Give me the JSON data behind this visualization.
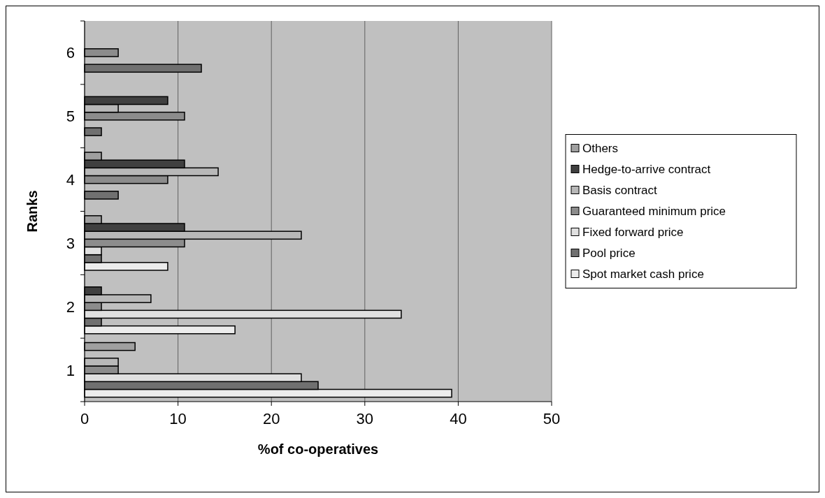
{
  "chart_data": {
    "type": "bar",
    "orientation": "horizontal",
    "xlabel": "%of co-operatives",
    "ylabel": "Ranks",
    "categories": [
      "6",
      "5",
      "4",
      "3",
      "2",
      "1"
    ],
    "series": [
      {
        "name": "Spot market cash price",
        "color": "#ececec",
        "values": [
          0,
          0,
          0,
          8.9,
          16.1,
          39.3
        ]
      },
      {
        "name": "Pool price",
        "color": "#707070",
        "values": [
          12.5,
          1.8,
          3.6,
          1.8,
          1.8,
          25.0
        ]
      },
      {
        "name": "Fixed forward price",
        "color": "#e0e0e0",
        "values": [
          0,
          0,
          0,
          1.8,
          33.9,
          23.2
        ]
      },
      {
        "name": "Guaranteed minimum price",
        "color": "#8c8c8c",
        "values": [
          3.6,
          10.7,
          8.9,
          10.7,
          1.8,
          3.6
        ]
      },
      {
        "name": "Basis contract",
        "color": "#b8b8b8",
        "values": [
          0,
          3.6,
          14.3,
          23.2,
          7.1,
          3.6
        ]
      },
      {
        "name": "Hedge-to-arrive contract",
        "color": "#404040",
        "values": [
          0,
          8.9,
          10.7,
          10.7,
          1.8,
          0
        ]
      },
      {
        "name": "Others",
        "color": "#a0a0a0",
        "values": [
          0,
          0,
          1.8,
          1.8,
          0,
          5.4
        ]
      }
    ],
    "xlim": [
      0,
      50
    ],
    "xticks": [
      0,
      10,
      20,
      30,
      40,
      50
    ],
    "grid": "x",
    "legend": "right"
  }
}
